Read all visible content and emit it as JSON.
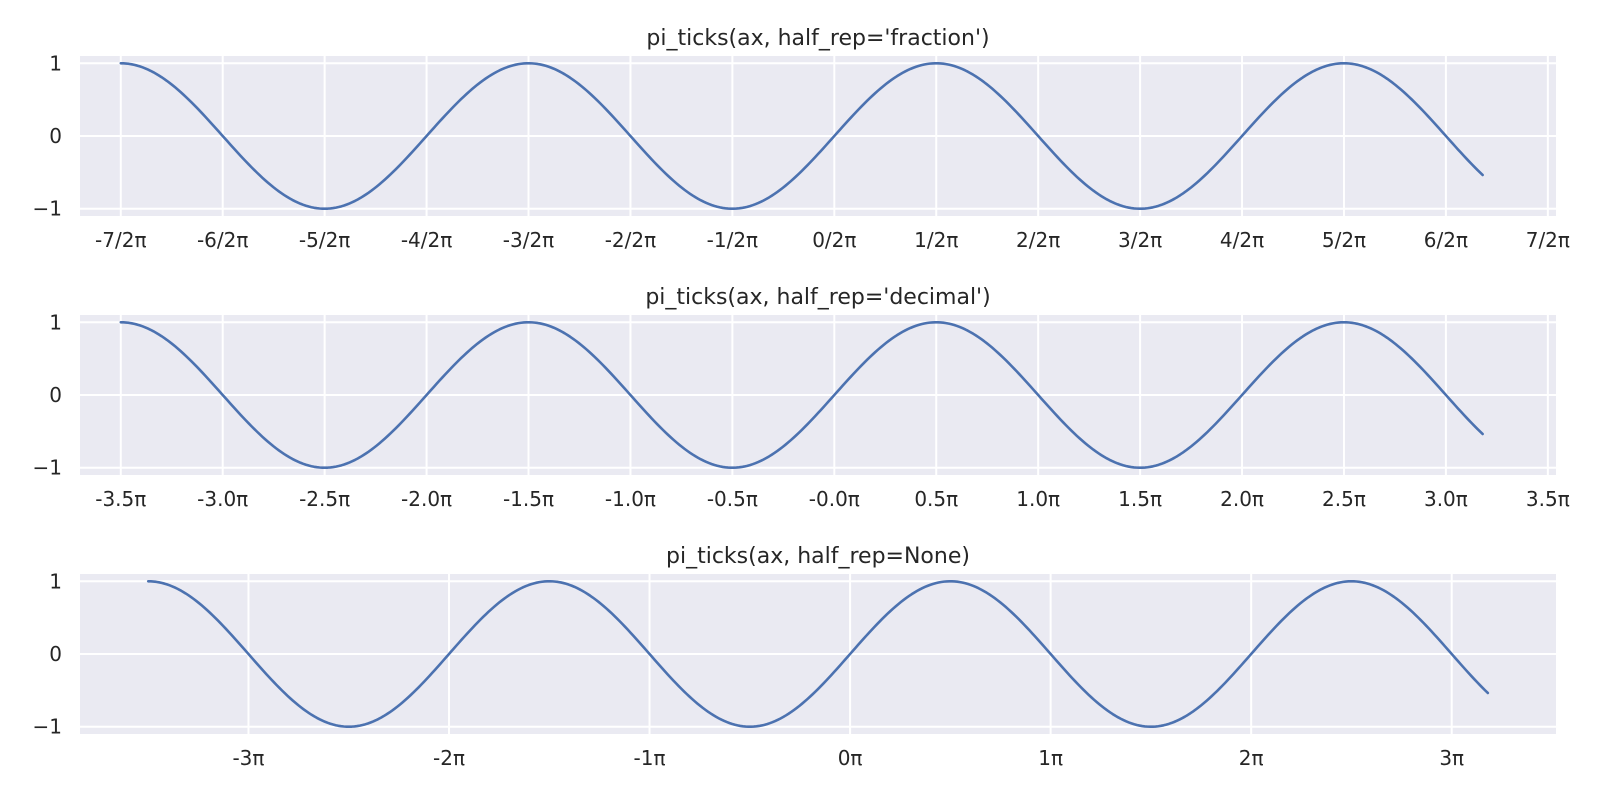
{
  "colors": {
    "line": "#4c72b0",
    "plot_background": "#eaeaf2",
    "grid": "#ffffff",
    "text": "#262626"
  },
  "chart_data": [
    {
      "type": "line",
      "title": "pi_ticks(ax, half_rep='fraction')",
      "xlabel": "",
      "ylabel": "",
      "function": "sin(x)",
      "x_range": [
        -3.5,
        3.18
      ],
      "x_unit": "π",
      "xlim": [
        -3.7,
        3.54
      ],
      "ylim": [
        -1.1,
        1.1
      ],
      "grid": true,
      "legend": "none",
      "series": [
        {
          "x_start": -3.5,
          "x_end": 3.18
        }
      ],
      "x_ticks": [
        -3.5,
        -3.0,
        -2.5,
        -2.0,
        -1.5,
        -1.0,
        -0.5,
        0.0,
        0.5,
        1.0,
        1.5,
        2.0,
        2.5,
        3.0,
        3.5
      ],
      "x_tick_labels": [
        "-7/2π",
        "-6/2π",
        "-5/2π",
        "-4/2π",
        "-3/2π",
        "-2/2π",
        "-1/2π",
        "0/2π",
        "1/2π",
        "2/2π",
        "3/2π",
        "4/2π",
        "5/2π",
        "6/2π",
        "7/2π"
      ],
      "y_ticks": [
        1,
        0,
        -1
      ],
      "y_tick_labels": [
        "1",
        "0",
        "−1"
      ]
    },
    {
      "type": "line",
      "title": "pi_ticks(ax, half_rep='decimal')",
      "xlabel": "",
      "ylabel": "",
      "function": "sin(x)",
      "x_range": [
        -3.5,
        3.18
      ],
      "x_unit": "π",
      "xlim": [
        -3.7,
        3.54
      ],
      "ylim": [
        -1.1,
        1.1
      ],
      "grid": true,
      "legend": "none",
      "series": [
        {
          "x_start": -3.5,
          "x_end": 3.18
        }
      ],
      "x_ticks": [
        -3.5,
        -3.0,
        -2.5,
        -2.0,
        -1.5,
        -1.0,
        -0.5,
        0.0,
        0.5,
        1.0,
        1.5,
        2.0,
        2.5,
        3.0,
        3.5
      ],
      "x_tick_labels": [
        "-3.5π",
        "-3.0π",
        "-2.5π",
        "-2.0π",
        "-1.5π",
        "-1.0π",
        "-0.5π",
        "-0.0π",
        "0.5π",
        "1.0π",
        "1.5π",
        "2.0π",
        "2.5π",
        "3.0π",
        "3.5π"
      ],
      "y_ticks": [
        1,
        0,
        -1
      ],
      "y_tick_labels": [
        "1",
        "0",
        "−1"
      ]
    },
    {
      "type": "line",
      "title": "pi_ticks(ax, half_rep=None)",
      "xlabel": "",
      "ylabel": "",
      "function": "sin(x)",
      "x_range": [
        -3.5,
        3.18
      ],
      "x_unit": "π",
      "xlim": [
        -3.84,
        3.52
      ],
      "ylim": [
        -1.1,
        1.1
      ],
      "grid": true,
      "legend": "none",
      "series": [
        {
          "x_start": -3.5,
          "x_end": 3.18
        }
      ],
      "x_ticks": [
        -3,
        -2,
        -1,
        0,
        1,
        2,
        3
      ],
      "x_tick_labels": [
        "-3π",
        "-2π",
        "-1π",
        "0π",
        "1π",
        "2π",
        "3π"
      ],
      "y_ticks": [
        1,
        0,
        -1
      ],
      "y_tick_labels": [
        "1",
        "0",
        "−1"
      ]
    }
  ]
}
